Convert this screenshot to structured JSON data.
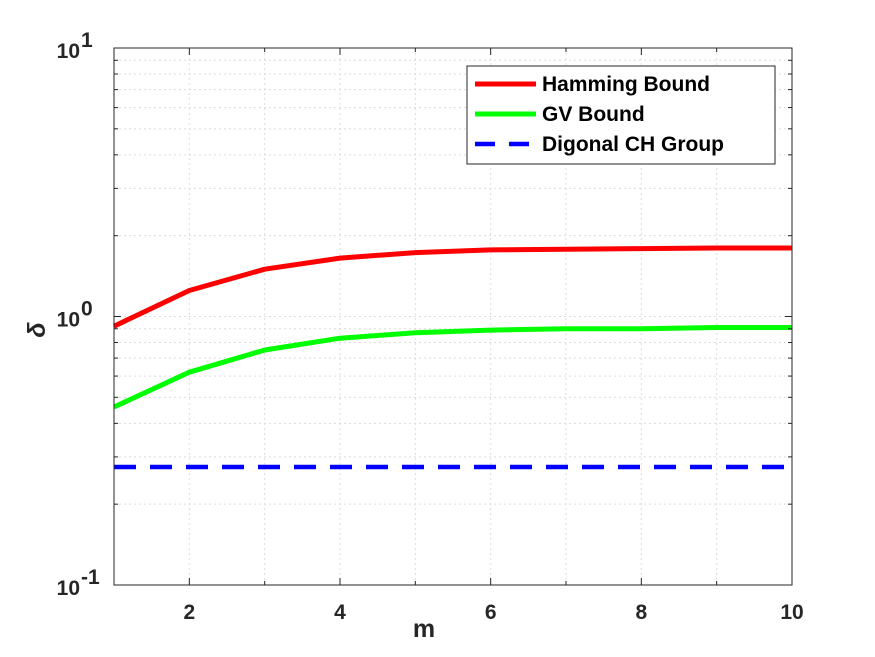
{
  "chart_data": {
    "type": "line",
    "xlabel": "m",
    "ylabel": "δ",
    "xlim": [
      1,
      10
    ],
    "ylim": [
      0.1,
      10
    ],
    "y_scale": "log",
    "grid": true,
    "legend_position": "top-right",
    "x_ticks": [
      {
        "value": 2,
        "label": "2"
      },
      {
        "value": 4,
        "label": "4"
      },
      {
        "value": 6,
        "label": "6"
      },
      {
        "value": 8,
        "label": "8"
      },
      {
        "value": 10,
        "label": "10"
      }
    ],
    "y_ticks": [
      {
        "value": 0.1,
        "base": "10",
        "exp": "-1"
      },
      {
        "value": 1,
        "base": "10",
        "exp": "0"
      },
      {
        "value": 10,
        "base": "10",
        "exp": "1"
      }
    ],
    "x": [
      1,
      2,
      3,
      4,
      5,
      6,
      7,
      8,
      9,
      10
    ],
    "series": [
      {
        "name": "Hamming Bound",
        "color": "#ff0000",
        "style": "solid",
        "values": [
          0.92,
          1.25,
          1.5,
          1.65,
          1.73,
          1.77,
          1.78,
          1.79,
          1.8,
          1.8
        ]
      },
      {
        "name": "GV Bound",
        "color": "#00ff00",
        "style": "solid",
        "values": [
          0.46,
          0.62,
          0.75,
          0.83,
          0.87,
          0.89,
          0.9,
          0.9,
          0.91,
          0.91
        ]
      },
      {
        "name": "Digonal CH Group",
        "color": "#0000ff",
        "style": "dashed",
        "values": [
          0.275,
          0.275,
          0.275,
          0.275,
          0.275,
          0.275,
          0.275,
          0.275,
          0.275,
          0.275
        ]
      }
    ]
  }
}
